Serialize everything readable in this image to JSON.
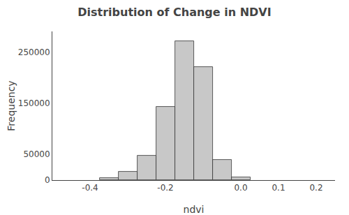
{
  "chart_data": {
    "type": "histogram",
    "title": "Distribution of Change in NDVI",
    "xlabel": "ndvi",
    "ylabel": "Frequency",
    "bins": [
      -0.375,
      -0.325,
      -0.275,
      -0.225,
      -0.175,
      -0.125,
      -0.075,
      -0.025,
      0.025
    ],
    "counts": [
      4000,
      16000,
      47000,
      143000,
      271000,
      220000,
      40000,
      6000
    ],
    "color": "#c8c8c8",
    "xlim": [
      -0.5,
      0.25
    ],
    "xticks": [
      -0.4,
      -0.2,
      {
        "value": 0.0,
        "label": "0.0"
      },
      0.1,
      0.2
    ],
    "ylim": [
      0,
      290000
    ],
    "yticks": [
      0,
      50000,
      150000,
      250000
    ],
    "grid": false
  }
}
